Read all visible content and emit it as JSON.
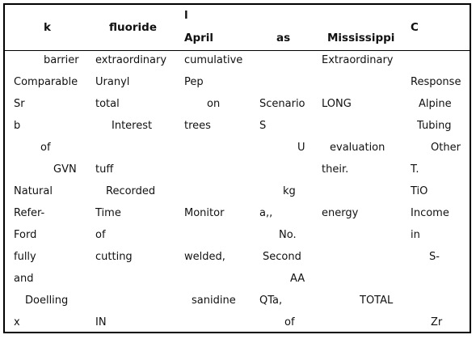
{
  "table": {
    "header": [
      "k",
      "fluoride",
      "l",
      "April",
      "as",
      "Mississippi",
      "C"
    ],
    "rows": [
      [
        "barrier",
        "extraordinary",
        "cumulative",
        "",
        "Extraordinary",
        ""
      ],
      [
        "Comparable",
        "Uranyl",
        "Pep",
        "",
        "",
        "Response"
      ],
      [
        "Sr",
        "total",
        "on",
        "Scenario",
        "LONG",
        "Alpine"
      ],
      [
        "b",
        "Interest",
        "trees",
        "S",
        "",
        "Tubing"
      ],
      [
        "of",
        "",
        "",
        "U",
        "evaluation",
        "Other"
      ],
      [
        "GVN",
        "tuff",
        "",
        "",
        "their.",
        "T."
      ],
      [
        "Natural",
        "Recorded",
        "",
        "kg",
        "",
        "TiO"
      ],
      [
        "Refer-",
        "Time",
        "Monitor",
        "a,,",
        "energy",
        "Income"
      ],
      [
        "Ford",
        "of",
        "",
        "No.",
        "",
        "in"
      ],
      [
        "fully",
        "cutting",
        "welded,",
        "Second",
        "",
        "S-"
      ],
      [
        "and",
        "",
        "",
        "AA",
        "",
        ""
      ],
      [
        "Doelling",
        "",
        "sanidine",
        "QTa,",
        "TOTAL",
        ""
      ],
      [
        "x",
        "IN",
        "",
        "of",
        "",
        "Zr"
      ]
    ]
  }
}
